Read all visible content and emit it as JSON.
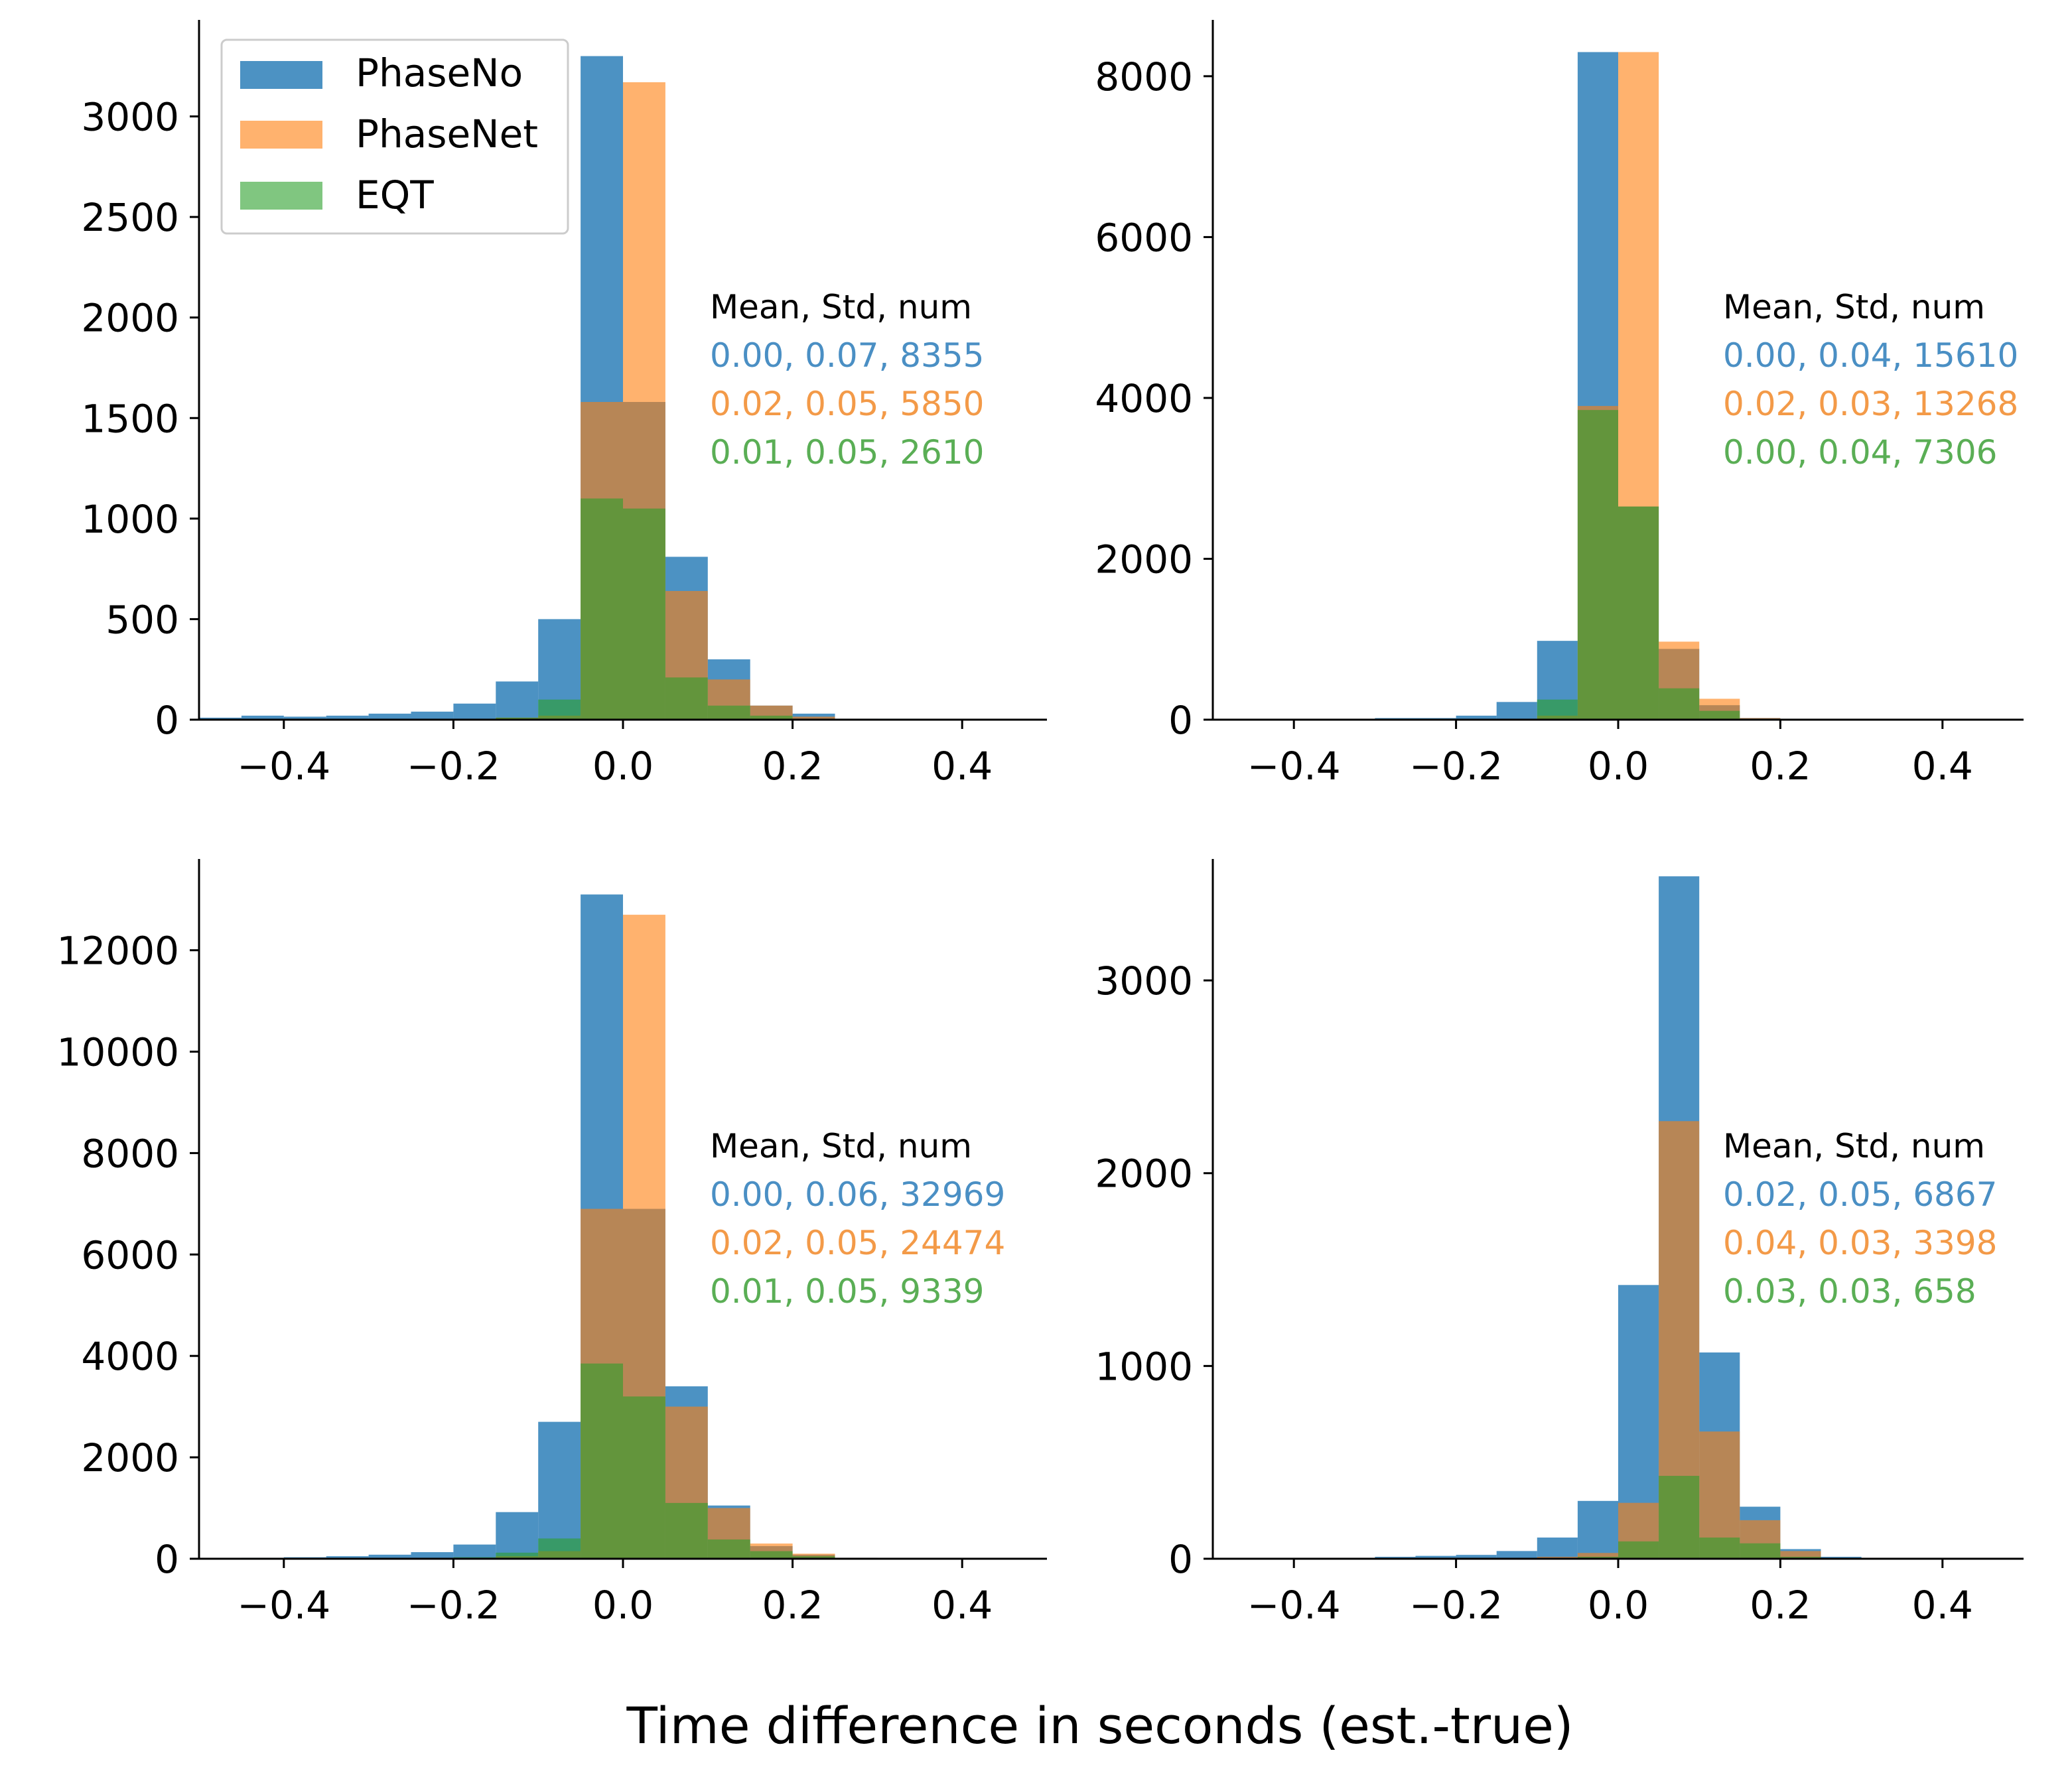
{
  "figure": {
    "xlabel": "Time difference in seconds (est.-true)"
  },
  "colors": {
    "PhaseNo": "#1f77b4",
    "PhaseNet": "#ff7f0e",
    "EQT": "#2ca02c",
    "PhaseNo_text": "#4a8fc4",
    "PhaseNet_text": "#f39a48",
    "EQT_text": "#5aae55"
  },
  "legend": {
    "placement": "upper-left of top-left panel",
    "entries": [
      "PhaseNo",
      "PhaseNet",
      "EQT"
    ]
  },
  "chart_data": [
    {
      "type": "bar",
      "panel": "top-left",
      "xlim": [
        -0.5,
        0.5
      ],
      "ylim": [
        0,
        3480
      ],
      "xticks": [
        -0.4,
        -0.2,
        0.0,
        0.2,
        0.4
      ],
      "xtick_labels": [
        "−0.4",
        "−0.2",
        "0.0",
        "0.2",
        "0.4"
      ],
      "yticks": [
        0,
        500,
        1000,
        1500,
        2000,
        2500,
        3000
      ],
      "ytick_labels": [
        "0",
        "500",
        "1000",
        "1500",
        "2000",
        "2500",
        "3000"
      ],
      "bin_edges": [
        -0.5,
        -0.45,
        -0.4,
        -0.35,
        -0.3,
        -0.25,
        -0.2,
        -0.15,
        -0.1,
        -0.05,
        0.0,
        0.05,
        0.1,
        0.15,
        0.2,
        0.25,
        0.3,
        0.35,
        0.4,
        0.45,
        0.5
      ],
      "series": [
        {
          "name": "PhaseNo",
          "values": [
            10,
            20,
            15,
            20,
            30,
            40,
            80,
            190,
            500,
            3300,
            1580,
            810,
            300,
            70,
            30,
            5,
            5,
            0,
            0,
            0
          ]
        },
        {
          "name": "PhaseNet",
          "values": [
            0,
            0,
            0,
            0,
            0,
            0,
            5,
            10,
            20,
            1580,
            3170,
            640,
            200,
            70,
            15,
            5,
            0,
            0,
            0,
            0
          ]
        },
        {
          "name": "EQT",
          "values": [
            0,
            0,
            0,
            0,
            0,
            0,
            0,
            10,
            100,
            1100,
            1050,
            210,
            70,
            20,
            5,
            0,
            0,
            0,
            0,
            0
          ]
        }
      ],
      "stats": {
        "header": "Mean, Std, num",
        "rows": [
          "0.00, 0.07, 8355",
          "0.02, 0.05, 5850",
          "0.01, 0.05, 2610"
        ]
      }
    },
    {
      "type": "bar",
      "panel": "top-right",
      "xlim": [
        -0.5,
        0.5
      ],
      "ylim": [
        0,
        8700
      ],
      "xticks": [
        -0.4,
        -0.2,
        0.0,
        0.2,
        0.4
      ],
      "xtick_labels": [
        "−0.4",
        "−0.2",
        "0.0",
        "0.2",
        "0.4"
      ],
      "yticks": [
        0,
        2000,
        4000,
        6000,
        8000
      ],
      "ytick_labels": [
        "0",
        "2000",
        "4000",
        "6000",
        "8000"
      ],
      "bin_edges": [
        -0.5,
        -0.45,
        -0.4,
        -0.35,
        -0.3,
        -0.25,
        -0.2,
        -0.15,
        -0.1,
        -0.05,
        0.0,
        0.05,
        0.1,
        0.15,
        0.2,
        0.25,
        0.3,
        0.35,
        0.4,
        0.45,
        0.5
      ],
      "series": [
        {
          "name": "PhaseNo",
          "values": [
            0,
            0,
            0,
            10,
            20,
            20,
            50,
            220,
            980,
            8300,
            2650,
            880,
            180,
            20,
            0,
            0,
            0,
            0,
            0,
            0
          ]
        },
        {
          "name": "PhaseNet",
          "values": [
            0,
            0,
            0,
            0,
            0,
            0,
            0,
            10,
            50,
            3900,
            8300,
            970,
            260,
            20,
            0,
            0,
            0,
            0,
            0,
            0
          ]
        },
        {
          "name": "EQT",
          "values": [
            0,
            0,
            0,
            0,
            0,
            0,
            0,
            10,
            250,
            3850,
            2650,
            390,
            110,
            10,
            0,
            0,
            0,
            0,
            0,
            0
          ]
        }
      ],
      "stats": {
        "header": "Mean, Std, num",
        "rows": [
          "0.00, 0.04, 15610",
          "0.02, 0.03, 13268",
          "0.00, 0.04, 7306"
        ]
      }
    },
    {
      "type": "bar",
      "panel": "bottom-left",
      "xlim": [
        -0.5,
        0.5
      ],
      "ylim": [
        0,
        13800
      ],
      "xticks": [
        -0.4,
        -0.2,
        0.0,
        0.2,
        0.4
      ],
      "xtick_labels": [
        "−0.4",
        "−0.2",
        "0.0",
        "0.2",
        "0.4"
      ],
      "yticks": [
        0,
        2000,
        4000,
        6000,
        8000,
        10000,
        12000
      ],
      "ytick_labels": [
        "0",
        "2000",
        "4000",
        "6000",
        "8000",
        "10000",
        "12000"
      ],
      "bin_edges": [
        -0.5,
        -0.45,
        -0.4,
        -0.35,
        -0.3,
        -0.25,
        -0.2,
        -0.15,
        -0.1,
        -0.05,
        0.0,
        0.05,
        0.1,
        0.15,
        0.2,
        0.25,
        0.3,
        0.35,
        0.4,
        0.45,
        0.5
      ],
      "series": [
        {
          "name": "PhaseNo",
          "values": [
            0,
            20,
            30,
            50,
            80,
            130,
            280,
            920,
            2700,
            13100,
            6900,
            3400,
            1050,
            250,
            80,
            20,
            10,
            0,
            0,
            0
          ]
        },
        {
          "name": "PhaseNet",
          "values": [
            0,
            0,
            0,
            0,
            0,
            0,
            20,
            50,
            150,
            6900,
            12700,
            3000,
            1000,
            300,
            100,
            20,
            0,
            0,
            0,
            0
          ]
        },
        {
          "name": "EQT",
          "values": [
            0,
            0,
            0,
            0,
            0,
            10,
            30,
            120,
            400,
            3850,
            3200,
            1100,
            380,
            150,
            50,
            10,
            0,
            0,
            0,
            0
          ]
        }
      ],
      "stats": {
        "header": "Mean, Std, num",
        "rows": [
          "0.00, 0.06, 32969",
          "0.02, 0.05, 24474",
          "0.01, 0.05, 9339"
        ]
      }
    },
    {
      "type": "bar",
      "panel": "bottom-right",
      "xlim": [
        -0.5,
        0.5
      ],
      "ylim": [
        0,
        3630
      ],
      "xticks": [
        -0.4,
        -0.2,
        0.0,
        0.2,
        0.4
      ],
      "xtick_labels": [
        "−0.4",
        "−0.2",
        "0.0",
        "0.2",
        "0.4"
      ],
      "yticks": [
        0,
        1000,
        2000,
        3000
      ],
      "ytick_labels": [
        "0",
        "1000",
        "2000",
        "3000"
      ],
      "bin_edges": [
        -0.5,
        -0.45,
        -0.4,
        -0.35,
        -0.3,
        -0.25,
        -0.2,
        -0.15,
        -0.1,
        -0.05,
        0.0,
        0.05,
        0.1,
        0.15,
        0.2,
        0.25,
        0.3,
        0.35,
        0.4,
        0.45,
        0.5
      ],
      "series": [
        {
          "name": "PhaseNo",
          "values": [
            0,
            0,
            5,
            5,
            10,
            15,
            20,
            40,
            110,
            300,
            1420,
            3540,
            1070,
            270,
            50,
            10,
            5,
            0,
            0,
            0
          ]
        },
        {
          "name": "PhaseNet",
          "values": [
            0,
            0,
            0,
            0,
            0,
            0,
            0,
            0,
            10,
            30,
            290,
            2270,
            660,
            200,
            40,
            5,
            0,
            0,
            0,
            0
          ]
        },
        {
          "name": "EQT",
          "values": [
            0,
            0,
            0,
            0,
            0,
            0,
            0,
            0,
            0,
            10,
            90,
            430,
            110,
            80,
            10,
            0,
            0,
            0,
            0,
            0
          ]
        }
      ],
      "stats": {
        "header": "Mean, Std, num",
        "rows": [
          "0.02, 0.05, 6867",
          "0.04, 0.03, 3398",
          "0.03, 0.03, 658"
        ]
      }
    }
  ]
}
